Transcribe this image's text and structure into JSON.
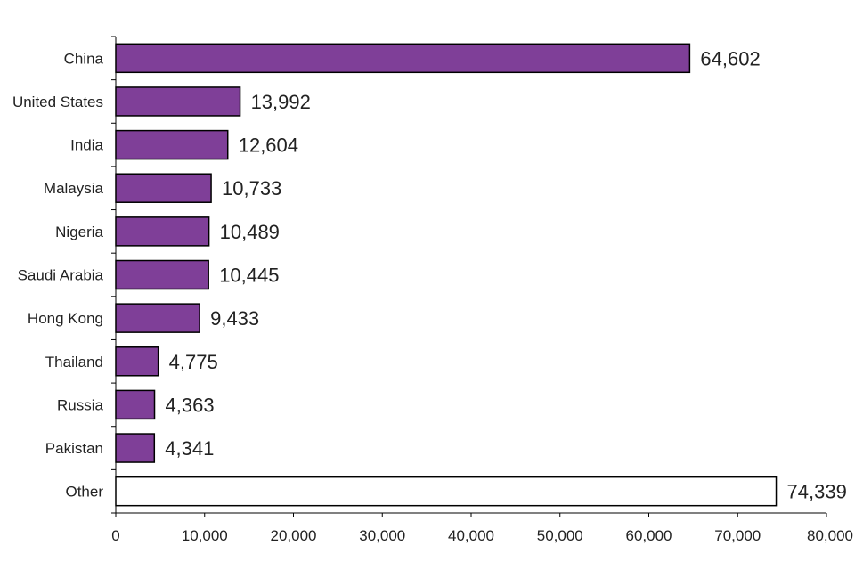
{
  "chart_data": {
    "type": "bar",
    "orientation": "horizontal",
    "title": "",
    "xlabel": "",
    "ylabel": "",
    "categories": [
      "China",
      "United States",
      "India",
      "Malaysia",
      "Nigeria",
      "Saudi Arabia",
      "Hong Kong",
      "Thailand",
      "Russia",
      "Pakistan",
      "Other"
    ],
    "values": [
      64602,
      13992,
      12604,
      10733,
      10489,
      10445,
      9433,
      4775,
      4363,
      4341,
      74339
    ],
    "value_labels": [
      "64,602",
      "13,992",
      "12,604",
      "10,733",
      "10,489",
      "10,445",
      "9,433",
      "4,775",
      "4,363",
      "4,341",
      "74,339"
    ],
    "xlim": [
      0,
      80000
    ],
    "xticks": [
      0,
      10000,
      20000,
      30000,
      40000,
      50000,
      60000,
      70000,
      80000
    ],
    "xtick_labels": [
      "0",
      "10,000",
      "20,000",
      "30,000",
      "40,000",
      "50,000",
      "60,000",
      "70,000",
      "80,000"
    ],
    "grid": false,
    "legend": "none",
    "colors": {
      "bar": "#7f3f98",
      "highlight_bar": "#ffffff",
      "bar_stroke": "#000000"
    },
    "highlight_category": "Other"
  }
}
